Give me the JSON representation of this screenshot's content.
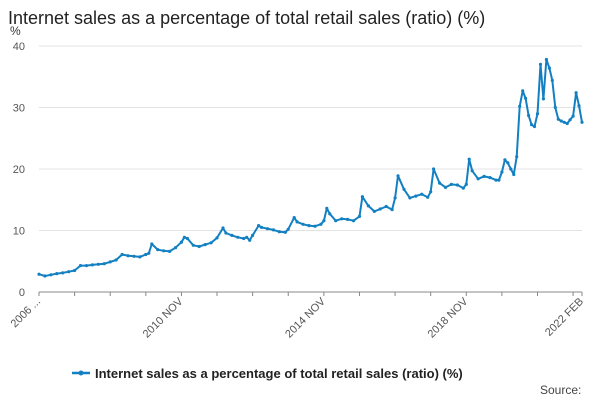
{
  "source_label": "Source:",
  "chart_data": {
    "type": "line",
    "title": "Internet sales as a percentage of total retail sales (ratio) (%)",
    "y_unit": "%",
    "xlabel": "",
    "ylabel": "",
    "ylim": [
      0,
      40
    ],
    "y_ticks": [
      0,
      10,
      20,
      30,
      40
    ],
    "x_range": [
      "2006 NOV",
      "2022 FEB"
    ],
    "x_ticks": [
      {
        "date": "2006 NOV",
        "label": "2006 ..."
      },
      {
        "date": "2010 NOV",
        "label": "2010 NOV"
      },
      {
        "date": "2014 NOV",
        "label": "2014 NOV"
      },
      {
        "date": "2018 NOV",
        "label": "2018 NOV"
      },
      {
        "date": "2022 FEB",
        "label": "2022 FEB"
      }
    ],
    "grid": true,
    "legend_position": "bottom",
    "series": [
      {
        "name": "Internet sales as a percentage of total retail sales (ratio) (%)",
        "color": "#1380c2",
        "points": [
          [
            "2006 NOV",
            2.9
          ],
          [
            "2007 JAN",
            2.6
          ],
          [
            "2007 MAR",
            2.8
          ],
          [
            "2007 MAY",
            3.0
          ],
          [
            "2007 JUL",
            3.1
          ],
          [
            "2007 SEP",
            3.3
          ],
          [
            "2007 NOV",
            3.5
          ],
          [
            "2008 JAN",
            4.3
          ],
          [
            "2008 MAR",
            4.3
          ],
          [
            "2008 MAY",
            4.4
          ],
          [
            "2008 JUL",
            4.5
          ],
          [
            "2008 SEP",
            4.6
          ],
          [
            "2008 NOV",
            4.9
          ],
          [
            "2009 JAN",
            5.2
          ],
          [
            "2009 MAR",
            6.1
          ],
          [
            "2009 MAY",
            5.9
          ],
          [
            "2009 JUL",
            5.8
          ],
          [
            "2009 SEP",
            5.7
          ],
          [
            "2009 NOV",
            6.1
          ],
          [
            "2009 DEC",
            6.3
          ],
          [
            "2010 JAN",
            7.8
          ],
          [
            "2010 MAR",
            6.9
          ],
          [
            "2010 MAY",
            6.7
          ],
          [
            "2010 JUL",
            6.6
          ],
          [
            "2010 SEP",
            7.2
          ],
          [
            "2010 NOV",
            8.1
          ],
          [
            "2010 DEC",
            8.9
          ],
          [
            "2011 JAN",
            8.7
          ],
          [
            "2011 MAR",
            7.6
          ],
          [
            "2011 MAY",
            7.4
          ],
          [
            "2011 JUL",
            7.7
          ],
          [
            "2011 SEP",
            8.0
          ],
          [
            "2011 NOV",
            8.8
          ],
          [
            "2012 JAN",
            10.4
          ],
          [
            "2012 FEB",
            9.6
          ],
          [
            "2012 APR",
            9.2
          ],
          [
            "2012 JUN",
            8.9
          ],
          [
            "2012 AUG",
            8.7
          ],
          [
            "2012 SEP",
            8.9
          ],
          [
            "2012 OCT",
            8.4
          ],
          [
            "2012 NOV",
            9.2
          ],
          [
            "2013 JAN",
            10.8
          ],
          [
            "2013 FEB",
            10.5
          ],
          [
            "2013 APR",
            10.3
          ],
          [
            "2013 JUN",
            10.1
          ],
          [
            "2013 AUG",
            9.8
          ],
          [
            "2013 OCT",
            9.7
          ],
          [
            "2013 NOV",
            10.2
          ],
          [
            "2014 JAN",
            12.1
          ],
          [
            "2014 FEB",
            11.4
          ],
          [
            "2014 APR",
            11.0
          ],
          [
            "2014 JUN",
            10.8
          ],
          [
            "2014 AUG",
            10.7
          ],
          [
            "2014 OCT",
            11.0
          ],
          [
            "2014 NOV",
            11.6
          ],
          [
            "2014 DEC",
            13.6
          ],
          [
            "2015 JAN",
            12.7
          ],
          [
            "2015 MAR",
            11.6
          ],
          [
            "2015 MAY",
            11.9
          ],
          [
            "2015 JUL",
            11.8
          ],
          [
            "2015 SEP",
            11.6
          ],
          [
            "2015 NOV",
            12.3
          ],
          [
            "2015 DEC",
            15.5
          ],
          [
            "2016 FEB",
            14.0
          ],
          [
            "2016 APR",
            13.1
          ],
          [
            "2016 JUN",
            13.5
          ],
          [
            "2016 AUG",
            13.9
          ],
          [
            "2016 OCT",
            13.4
          ],
          [
            "2016 NOV",
            15.3
          ],
          [
            "2016 DEC",
            18.9
          ],
          [
            "2017 FEB",
            16.7
          ],
          [
            "2017 APR",
            15.3
          ],
          [
            "2017 JUN",
            15.6
          ],
          [
            "2017 AUG",
            15.9
          ],
          [
            "2017 OCT",
            15.4
          ],
          [
            "2017 NOV",
            16.3
          ],
          [
            "2017 DEC",
            20.0
          ],
          [
            "2018 FEB",
            17.7
          ],
          [
            "2018 APR",
            17.0
          ],
          [
            "2018 JUN",
            17.5
          ],
          [
            "2018 AUG",
            17.4
          ],
          [
            "2018 OCT",
            16.9
          ],
          [
            "2018 NOV",
            17.5
          ],
          [
            "2018 DEC",
            21.6
          ],
          [
            "2019 JAN",
            19.7
          ],
          [
            "2019 MAR",
            18.4
          ],
          [
            "2019 MAY",
            18.8
          ],
          [
            "2019 JUL",
            18.6
          ],
          [
            "2019 SEP",
            18.2
          ],
          [
            "2019 OCT",
            18.2
          ],
          [
            "2019 NOV",
            19.5
          ],
          [
            "2019 DEC",
            21.5
          ],
          [
            "2020 JAN",
            21.0
          ],
          [
            "2020 FEB",
            20.0
          ],
          [
            "2020 MAR",
            19.1
          ],
          [
            "2020 APR",
            22.0
          ],
          [
            "2020 MAY",
            30.2
          ],
          [
            "2020 JUN",
            32.7
          ],
          [
            "2020 JUL",
            31.5
          ],
          [
            "2020 AUG",
            28.7
          ],
          [
            "2020 SEP",
            27.2
          ],
          [
            "2020 OCT",
            26.9
          ],
          [
            "2020 NOV",
            29.0
          ],
          [
            "2020 DEC",
            37.0
          ],
          [
            "2021 JAN",
            31.4
          ],
          [
            "2021 FEB",
            37.8
          ],
          [
            "2021 MAR",
            36.4
          ],
          [
            "2021 APR",
            34.4
          ],
          [
            "2021 MAY",
            30.0
          ],
          [
            "2021 JUN",
            28.1
          ],
          [
            "2021 JUL",
            27.8
          ],
          [
            "2021 AUG",
            27.6
          ],
          [
            "2021 SEP",
            27.4
          ],
          [
            "2021 OCT",
            28.0
          ],
          [
            "2021 NOV",
            28.6
          ],
          [
            "2021 DEC",
            32.4
          ],
          [
            "2022 JAN",
            30.3
          ],
          [
            "2022 FEB",
            27.6
          ]
        ]
      }
    ]
  }
}
